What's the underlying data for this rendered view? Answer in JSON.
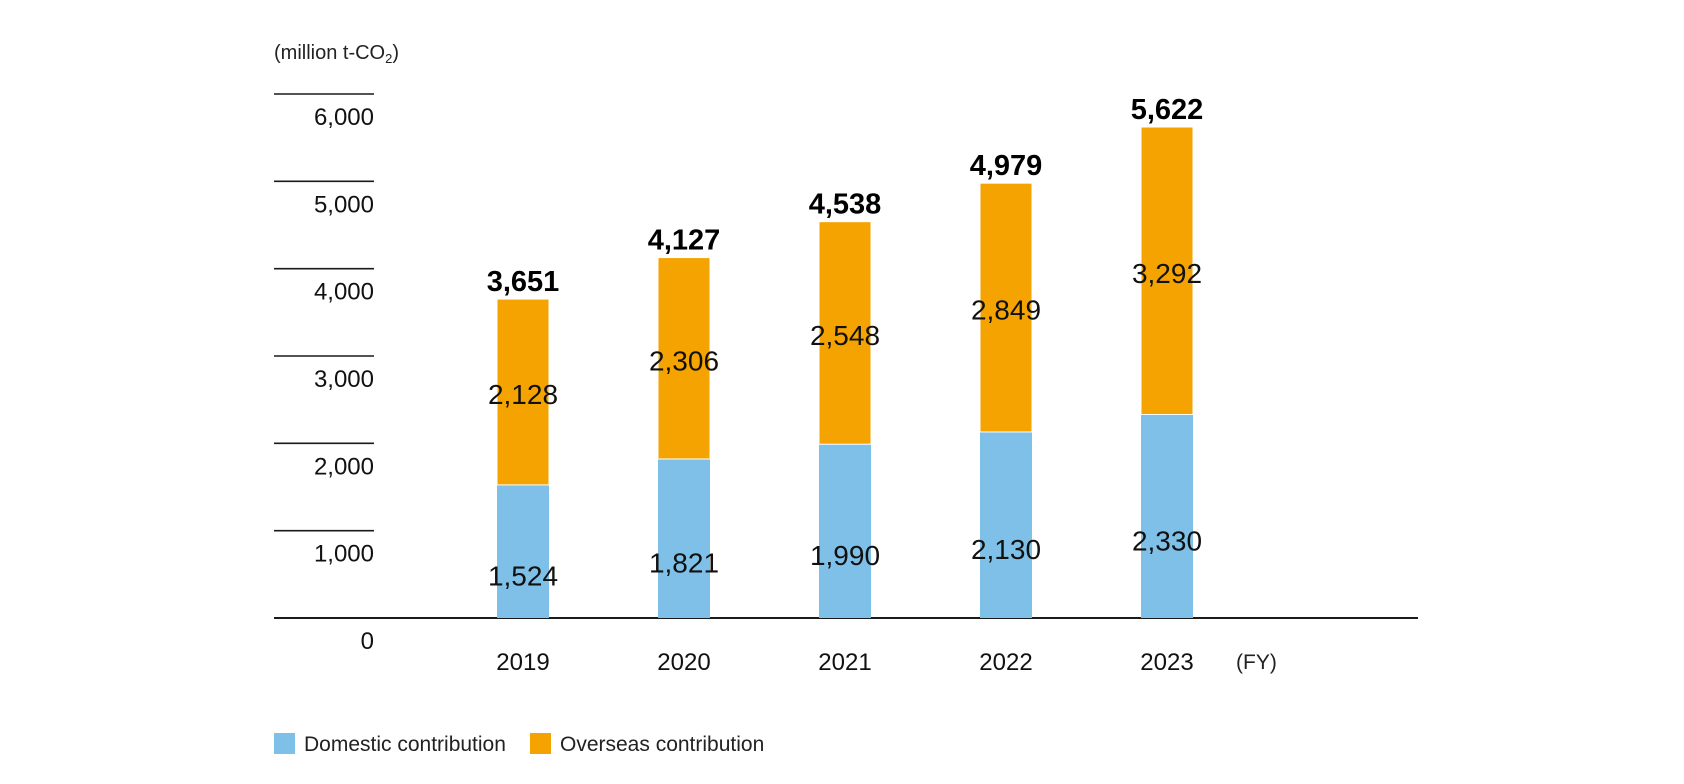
{
  "chart_data": {
    "type": "bar",
    "stacked": true,
    "unit_label": "(million t-CO",
    "unit_sub": "2",
    "unit_close": ")",
    "x_unit": "(FY)",
    "categories": [
      "2019",
      "2020",
      "2021",
      "2022",
      "2023"
    ],
    "series": [
      {
        "name": "Domestic contribution",
        "color": "#7fc0e8",
        "values": [
          1524,
          1821,
          1990,
          2130,
          2330
        ],
        "value_labels": [
          "1,524",
          "1,821",
          "1,990",
          "2,130",
          "2,330"
        ]
      },
      {
        "name": "Overseas contribution",
        "color": "#f5a300",
        "values": [
          2128,
          2306,
          2548,
          2849,
          3292
        ],
        "value_labels": [
          "2,128",
          "2,306",
          "2,548",
          "2,849",
          "3,292"
        ]
      }
    ],
    "totals": [
      3651,
      4127,
      4538,
      4979,
      5622
    ],
    "total_labels": [
      "3,651",
      "4,127",
      "4,538",
      "4,979",
      "5,622"
    ],
    "ylim": [
      0,
      6000
    ],
    "yticks": [
      0,
      1000,
      2000,
      3000,
      4000,
      5000,
      6000
    ],
    "ytick_labels": [
      "0",
      "1,000",
      "2,000",
      "3,000",
      "4,000",
      "5,000",
      "6,000"
    ],
    "grid": true,
    "legend_position": "bottom-left"
  }
}
